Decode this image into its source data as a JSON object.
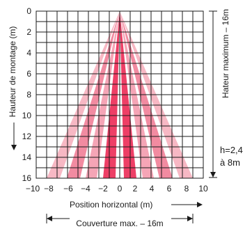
{
  "diagram": {
    "xlabel": "Position horizontal (m)",
    "ylabel": "Hauteur de montage (m)",
    "right_label": "Hateur maximum – 16m",
    "coverage_label": "Couverture max. – 16m",
    "height_note_line1": "h=2,4",
    "height_note_line2": "à 8m",
    "x_ticks": [
      "−10",
      "−8",
      "−6",
      "−4",
      "−2",
      "0",
      "2",
      "4",
      "6",
      "8",
      "10"
    ],
    "y_ticks": [
      "0",
      "2",
      "4",
      "6",
      "8",
      "10",
      "12",
      "14",
      "16"
    ],
    "colors": {
      "outer_beam": "#f7b8c4",
      "middle_beam": "#f28ba1",
      "inner_beam": "#ee3f66",
      "grid": "#1a1a1a"
    }
  }
}
